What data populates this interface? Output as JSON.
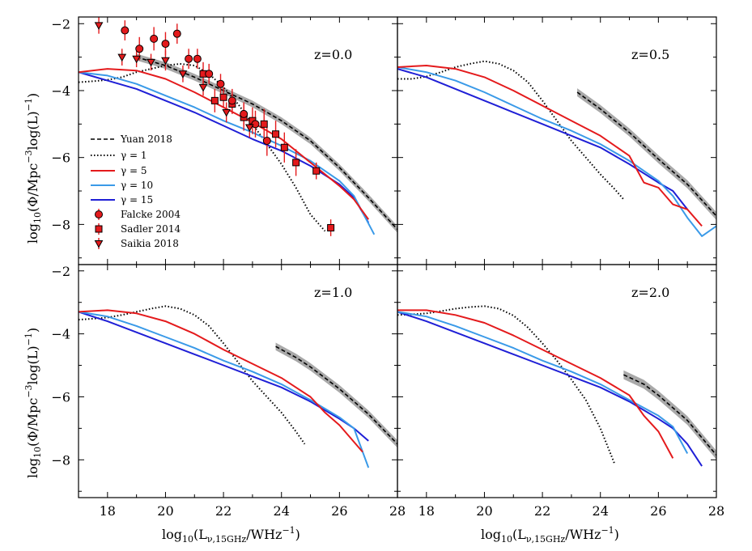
{
  "figure": {
    "xlabel_main": "log",
    "xlabel_sub": "10",
    "xlabel_paren_open": "(L",
    "xlabel_lsub": "ν,15GHz",
    "xlabel_unit": "/WHz",
    "xlabel_exp": "−1",
    "xlabel_close": ")",
    "ylabel_main": "log",
    "ylabel_sub": "10",
    "ylabel_mid": "(Φ/Mpc",
    "ylabel_exp1": "−3",
    "ylabel_mid2": "log(L)",
    "ylabel_exp2": "−1",
    "ylabel_close": ")"
  },
  "legend": {
    "yuan": "Yuan 2018",
    "g1": "γ = 1",
    "g5": "γ = 5",
    "g10": "γ = 10",
    "g15": "γ = 15",
    "falcke": "Falcke 2004",
    "sadler": "Sadler 2014",
    "saikia": "Saikia 2018"
  },
  "colors": {
    "g1": "#000000",
    "g5": "#e41a1c",
    "g10": "#3a9ae8",
    "g15": "#1f1fd6",
    "yuan_band": "#9a9a9a",
    "obs_fill": "#e41a1c"
  },
  "chart_data": [
    {
      "type": "line",
      "panel": "top-left",
      "label": "z=0.0",
      "xlim": [
        17,
        28
      ],
      "ylim": [
        -9.2,
        -1.8
      ],
      "xticks": [
        "18",
        "20",
        "22",
        "24",
        "26",
        "28"
      ],
      "yticks": [
        "−2",
        "−4",
        "−6",
        "−8"
      ],
      "show_xticklabels": false,
      "show_yticklabels": true,
      "series": {
        "yuan": {
          "x": [
            19,
            20,
            21,
            22,
            23,
            24,
            25,
            26,
            27,
            28
          ],
          "y": [
            -3.0,
            -3.25,
            -3.6,
            -4.0,
            -4.4,
            -4.9,
            -5.5,
            -6.3,
            -7.2,
            -8.15
          ],
          "band": 0.1
        },
        "g1": {
          "x": [
            17,
            17.5,
            18,
            18.5,
            19,
            19.5,
            20,
            20.5,
            21,
            21.5,
            22,
            22.5,
            23,
            23.5,
            24,
            24.5,
            25,
            25.5
          ],
          "y": [
            -3.75,
            -3.72,
            -3.68,
            -3.6,
            -3.45,
            -3.35,
            -3.25,
            -3.2,
            -3.25,
            -3.5,
            -3.9,
            -4.4,
            -5.0,
            -5.6,
            -6.2,
            -6.9,
            -7.7,
            -8.2
          ]
        },
        "g5": {
          "x": [
            17,
            18,
            19,
            20,
            21,
            22,
            23,
            24,
            25,
            26,
            26.5,
            27
          ],
          "y": [
            -3.45,
            -3.35,
            -3.4,
            -3.65,
            -4.05,
            -4.5,
            -4.95,
            -5.45,
            -6.15,
            -6.85,
            -7.25,
            -7.85
          ]
        },
        "g10": {
          "x": [
            17,
            18,
            19,
            20,
            21,
            22,
            23,
            24,
            25,
            26,
            26.5,
            27.2
          ],
          "y": [
            -3.45,
            -3.55,
            -3.8,
            -4.15,
            -4.5,
            -4.9,
            -5.25,
            -5.65,
            -6.1,
            -6.7,
            -7.15,
            -8.3
          ]
        },
        "g15": {
          "x": [
            17,
            18,
            19,
            20,
            21,
            22,
            23,
            24,
            25,
            26,
            26.5,
            27
          ],
          "y": [
            -3.45,
            -3.7,
            -3.95,
            -4.3,
            -4.65,
            -5.05,
            -5.45,
            -5.8,
            -6.25,
            -6.8,
            -7.2,
            -7.95
          ]
        }
      },
      "observations": {
        "falcke": {
          "x": [
            18.6,
            19.1,
            19.6,
            20.0,
            20.4,
            20.8,
            21.1,
            21.5,
            21.9,
            22.3,
            22.7,
            23.1,
            23.5
          ],
          "y": [
            -2.2,
            -2.75,
            -2.45,
            -2.6,
            -2.3,
            -3.05,
            -3.05,
            -3.5,
            -3.8,
            -4.3,
            -4.7,
            -5.0,
            -5.5
          ],
          "err": [
            0.6,
            0.7,
            0.7,
            0.7,
            0.6,
            0.6,
            0.6,
            0.6,
            0.6,
            0.7,
            0.7,
            0.8,
            0.9
          ]
        },
        "sadler": {
          "x": [
            21.3,
            21.7,
            22.0,
            22.3,
            22.7,
            23.0,
            23.4,
            23.8,
            24.1,
            24.5,
            25.2,
            25.7
          ],
          "y": [
            -3.5,
            -4.3,
            -4.2,
            -4.4,
            -4.8,
            -4.9,
            -5.0,
            -5.3,
            -5.7,
            -6.15,
            -6.4,
            -8.1
          ],
          "err": [
            0.7,
            0.7,
            0.6,
            0.6,
            0.8,
            0.8,
            0.9,
            0.8,
            0.9,
            0.8,
            0.5,
            0.5
          ]
        },
        "saikia": {
          "x": [
            17.7,
            18.5,
            19.0,
            19.5,
            20.0,
            20.6,
            21.3,
            22.1,
            22.9
          ],
          "y": [
            -2.05,
            -3.0,
            -3.05,
            -3.15,
            -3.1,
            -3.5,
            -3.9,
            -4.65,
            -5.1
          ],
          "err": [
            0.5,
            0.5,
            0.5,
            0.5,
            0.6,
            0.5,
            0.5,
            0.6,
            0.6
          ]
        }
      }
    },
    {
      "type": "line",
      "panel": "top-right",
      "label": "z=0.5",
      "xlim": [
        17,
        28
      ],
      "ylim": [
        -9.2,
        -1.8
      ],
      "xticks": [
        "18",
        "20",
        "22",
        "24",
        "26",
        "28"
      ],
      "yticks": [
        "−2",
        "−4",
        "−6",
        "−8"
      ],
      "show_xticklabels": false,
      "show_yticklabels": false,
      "series": {
        "yuan": {
          "x": [
            23.2,
            24,
            25,
            26,
            27,
            28
          ],
          "y": [
            -4.05,
            -4.55,
            -5.25,
            -6.05,
            -6.8,
            -7.75
          ],
          "band": 0.12
        },
        "g1": {
          "x": [
            17,
            17.5,
            18,
            18.5,
            19,
            19.5,
            20,
            20.5,
            21,
            21.5,
            22,
            22.5,
            23,
            23.5,
            24,
            24.5,
            24.8
          ],
          "y": [
            -3.65,
            -3.65,
            -3.58,
            -3.45,
            -3.3,
            -3.2,
            -3.12,
            -3.2,
            -3.4,
            -3.75,
            -4.3,
            -4.9,
            -5.5,
            -6.0,
            -6.5,
            -6.95,
            -7.25
          ]
        },
        "g5": {
          "x": [
            17,
            18,
            19,
            20,
            21,
            22,
            23,
            24,
            25,
            25.5,
            26,
            26.5,
            27,
            27.5
          ],
          "y": [
            -3.3,
            -3.25,
            -3.35,
            -3.6,
            -4.0,
            -4.45,
            -4.9,
            -5.35,
            -5.95,
            -6.75,
            -6.9,
            -7.4,
            -7.55,
            -8.05
          ]
        },
        "g10": {
          "x": [
            17,
            18,
            19,
            20,
            21,
            22,
            23,
            24,
            25,
            26,
            26.5,
            27,
            27.5,
            28
          ],
          "y": [
            -3.3,
            -3.45,
            -3.7,
            -4.05,
            -4.45,
            -4.85,
            -5.2,
            -5.6,
            -6.1,
            -6.7,
            -7.15,
            -7.8,
            -8.35,
            -8.05
          ]
        },
        "g15": {
          "x": [
            17,
            18,
            19,
            20,
            21,
            22,
            23,
            24,
            25,
            26,
            26.5,
            27
          ],
          "y": [
            -3.35,
            -3.6,
            -3.95,
            -4.3,
            -4.65,
            -5.0,
            -5.35,
            -5.7,
            -6.2,
            -6.75,
            -7.0,
            -7.55
          ]
        }
      }
    },
    {
      "type": "line",
      "panel": "bottom-left",
      "label": "z=1.0",
      "xlim": [
        17,
        28
      ],
      "ylim": [
        -9.2,
        -1.8
      ],
      "xticks": [
        "18",
        "20",
        "22",
        "24",
        "26",
        "28"
      ],
      "yticks": [
        "−2",
        "−4",
        "−6",
        "−8"
      ],
      "show_xticklabels": true,
      "show_yticklabels": true,
      "series": {
        "yuan": {
          "x": [
            23.8,
            24.5,
            25,
            26,
            27,
            28
          ],
          "y": [
            -4.4,
            -4.75,
            -5.05,
            -5.75,
            -6.55,
            -7.5
          ],
          "band": 0.12
        },
        "g1": {
          "x": [
            17,
            17.5,
            18,
            18.5,
            19,
            19.5,
            20,
            20.5,
            21,
            21.5,
            22,
            22.5,
            23,
            23.5,
            24,
            24.5,
            24.8
          ],
          "y": [
            -3.55,
            -3.52,
            -3.48,
            -3.4,
            -3.3,
            -3.2,
            -3.12,
            -3.2,
            -3.4,
            -3.75,
            -4.3,
            -4.9,
            -5.5,
            -6.0,
            -6.5,
            -7.1,
            -7.5
          ]
        },
        "g5": {
          "x": [
            17,
            18,
            19,
            20,
            21,
            22,
            23,
            24,
            25,
            25.5,
            26,
            26.8
          ],
          "y": [
            -3.3,
            -3.25,
            -3.35,
            -3.6,
            -4.0,
            -4.5,
            -4.95,
            -5.4,
            -6.0,
            -6.5,
            -6.9,
            -7.75
          ]
        },
        "g10": {
          "x": [
            17,
            18,
            19,
            20,
            21,
            22,
            23,
            24,
            25,
            26,
            26.5,
            27
          ],
          "y": [
            -3.3,
            -3.45,
            -3.75,
            -4.1,
            -4.45,
            -4.85,
            -5.2,
            -5.6,
            -6.1,
            -6.65,
            -7.0,
            -8.25
          ]
        },
        "g15": {
          "x": [
            17,
            18,
            19,
            20,
            21,
            22,
            23,
            24,
            25,
            26,
            26.5,
            27
          ],
          "y": [
            -3.3,
            -3.6,
            -3.95,
            -4.3,
            -4.65,
            -5.0,
            -5.35,
            -5.7,
            -6.15,
            -6.7,
            -7.0,
            -7.4
          ]
        }
      }
    },
    {
      "type": "line",
      "panel": "bottom-right",
      "label": "z=2.0",
      "xlim": [
        17,
        28
      ],
      "ylim": [
        -9.2,
        -1.8
      ],
      "xticks": [
        "18",
        "20",
        "22",
        "24",
        "26",
        "28"
      ],
      "yticks": [
        "−2",
        "−4",
        "−6",
        "−8"
      ],
      "show_xticklabels": true,
      "show_yticklabels": false,
      "series": {
        "yuan": {
          "x": [
            24.8,
            25.5,
            26,
            27,
            28
          ],
          "y": [
            -5.3,
            -5.6,
            -5.95,
            -6.75,
            -7.85
          ],
          "band": 0.14
        },
        "g1": {
          "x": [
            17,
            17.5,
            18,
            18.5,
            19,
            19.5,
            20,
            20.5,
            21,
            21.5,
            22,
            22.5,
            23,
            23.5,
            24,
            24.5
          ],
          "y": [
            -3.4,
            -3.38,
            -3.35,
            -3.28,
            -3.2,
            -3.15,
            -3.12,
            -3.2,
            -3.42,
            -3.8,
            -4.3,
            -4.85,
            -5.45,
            -6.1,
            -7.0,
            -8.15
          ]
        },
        "g5": {
          "x": [
            17,
            18,
            19,
            20,
            21,
            22,
            23,
            24,
            25,
            25.5,
            26,
            26.5
          ],
          "y": [
            -3.25,
            -3.25,
            -3.4,
            -3.65,
            -4.05,
            -4.5,
            -4.95,
            -5.4,
            -5.95,
            -6.6,
            -7.1,
            -7.95
          ]
        },
        "g10": {
          "x": [
            17,
            18,
            19,
            20,
            21,
            22,
            23,
            24,
            25,
            26,
            26.5,
            27
          ],
          "y": [
            -3.3,
            -3.45,
            -3.75,
            -4.1,
            -4.45,
            -4.85,
            -5.2,
            -5.6,
            -6.1,
            -6.6,
            -6.95,
            -7.8
          ]
        },
        "g15": {
          "x": [
            17,
            18,
            19,
            20,
            21,
            22,
            23,
            24,
            25,
            26,
            26.5,
            27,
            27.5
          ],
          "y": [
            -3.3,
            -3.6,
            -3.95,
            -4.3,
            -4.65,
            -5.0,
            -5.35,
            -5.7,
            -6.15,
            -6.7,
            -7.0,
            -7.5,
            -8.2
          ]
        }
      }
    }
  ]
}
